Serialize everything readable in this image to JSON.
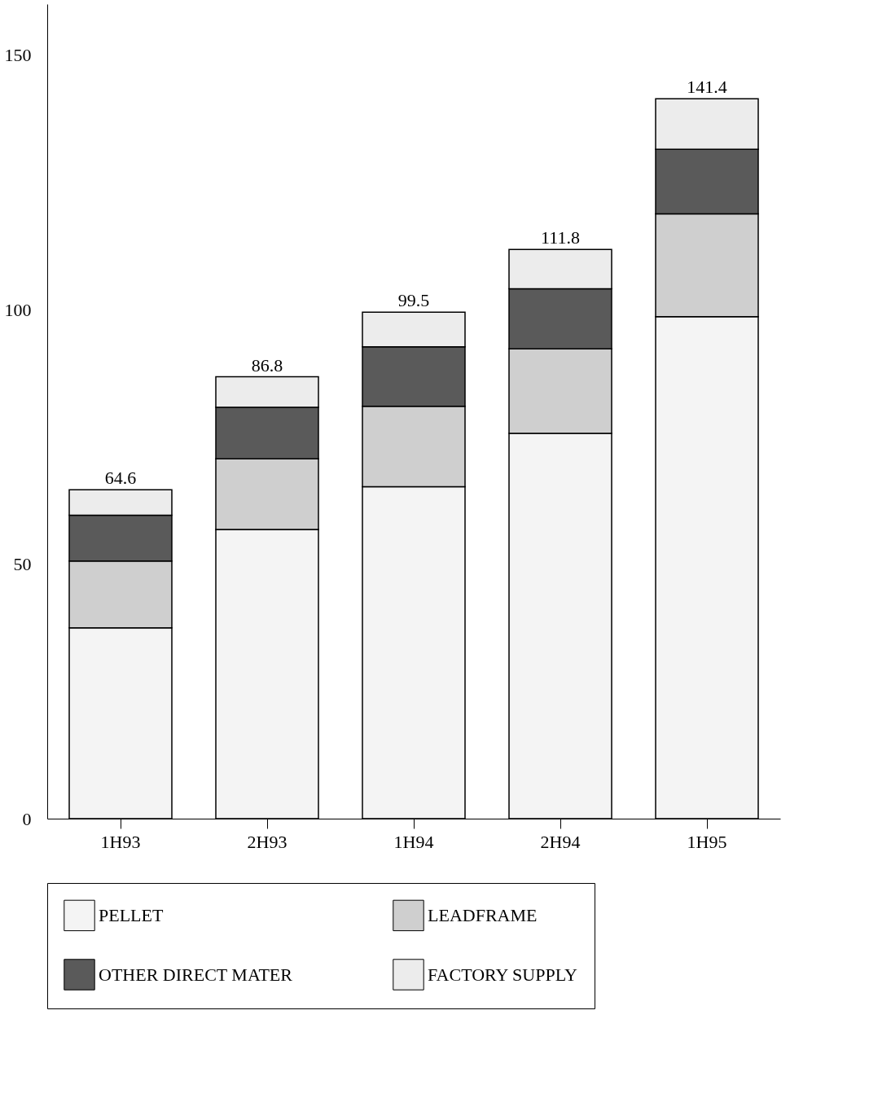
{
  "chart_data": {
    "type": "bar",
    "stacked": true,
    "categories": [
      "1H93",
      "2H93",
      "1H94",
      "2H94",
      "1H95"
    ],
    "series": [
      {
        "name": "PELLET",
        "color": "#f4f4f4",
        "values": [
          37.5,
          56.8,
          65.2,
          75.7,
          98.6
        ]
      },
      {
        "name": "LEADFRAME",
        "color": "#cfcfcf",
        "values": [
          13.1,
          13.9,
          15.8,
          16.6,
          20.2
        ]
      },
      {
        "name": "OTHER DIRECT MATER",
        "color": "#5a5a5a",
        "values": [
          9.0,
          10.1,
          11.7,
          11.8,
          12.7
        ]
      },
      {
        "name": "FACTORY SUPPLY",
        "color": "#ececec",
        "values": [
          5.0,
          6.0,
          6.8,
          7.7,
          9.9
        ]
      }
    ],
    "totals": [
      "64.6",
      "86.8",
      "99.5",
      "111.8",
      "141.4"
    ],
    "ylim": [
      0,
      160
    ],
    "yticks": [
      0,
      50,
      100,
      150
    ],
    "grid": false,
    "legend": "bottom"
  }
}
